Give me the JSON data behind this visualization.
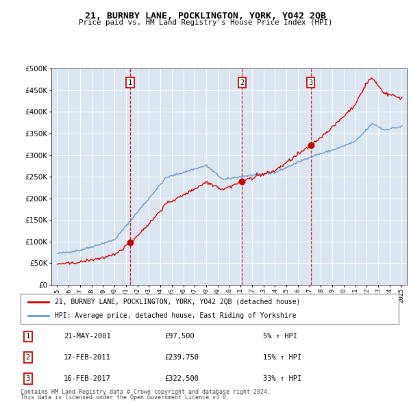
{
  "title": "21, BURNBY LANE, POCKLINGTON, YORK, YO42 2QB",
  "subtitle": "Price paid vs. HM Land Registry's House Price Index (HPI)",
  "legend_line1": "21, BURNBY LANE, POCKLINGTON, YORK, YO42 2QB (detached house)",
  "legend_line2": "HPI: Average price, detached house, East Riding of Yorkshire",
  "footnote1": "Contains HM Land Registry data © Crown copyright and database right 2024.",
  "footnote2": "This data is licensed under the Open Government Licence v3.0.",
  "transactions": [
    {
      "label": "1",
      "date": "21-MAY-2001",
      "price": 97500,
      "pct": "5%",
      "x": 2001.38
    },
    {
      "label": "2",
      "date": "17-FEB-2011",
      "price": 239750,
      "pct": "15%",
      "x": 2011.12
    },
    {
      "label": "3",
      "date": "16-FEB-2017",
      "price": 322500,
      "pct": "33%",
      "x": 2017.12
    }
  ],
  "price_color": "#cc0000",
  "hpi_color": "#6699cc",
  "plot_bg": "#dce6f0",
  "ylim": [
    0,
    500000
  ],
  "yticks": [
    0,
    50000,
    100000,
    150000,
    200000,
    250000,
    300000,
    350000,
    400000,
    450000,
    500000
  ],
  "xlim_start": 1994.5,
  "xlim_end": 2025.5
}
